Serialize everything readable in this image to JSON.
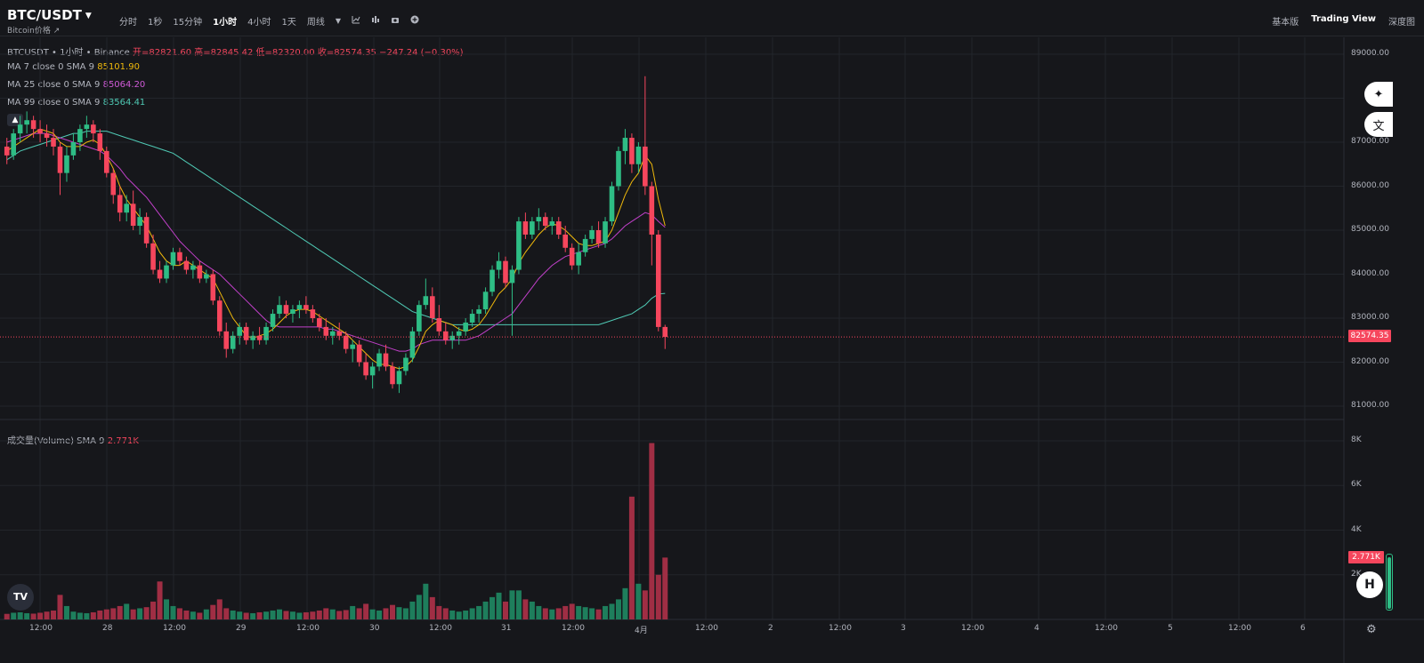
{
  "header": {
    "pair": "BTC/USDT",
    "subtitle": "Bitcoin价格 ↗",
    "intervals": [
      "分时",
      "1秒",
      "15分钟",
      "1小时",
      "4小时",
      "1天",
      "周线"
    ],
    "active_interval": "1小时",
    "views": [
      "基本版",
      "Trading View",
      "深度图"
    ],
    "active_view": "Trading View"
  },
  "legend": {
    "ohlc_prefix": "BTCUSDT • 1小时 • Binance",
    "ohlc_values": "开=82821.60  高=82845.42  低=82320.00  收=82574.35  −247.24 (−0.30%)",
    "ma7_label": "MA 7 close 0 SMA 9",
    "ma7_value": "85101.90",
    "ma25_label": "MA 25 close 0 SMA 9",
    "ma25_value": "85064.20",
    "ma99_label": "MA 99 close 0 SMA 9",
    "ma99_value": "83564.41",
    "volume_label": "成交量(Volume) SMA 9",
    "volume_value": "2.771K"
  },
  "price_axis": {
    "ticks": [
      "89000.00",
      "87000.00",
      "86000.00",
      "85000.00",
      "84000.00",
      "83000.00",
      "82000.00",
      "81000.00"
    ],
    "current_price": "82574.35",
    "current_price_color": "#f6465d"
  },
  "volume_axis": {
    "ticks": [
      "8K",
      "6K",
      "4K",
      "2K"
    ],
    "current_volume": "2.771K"
  },
  "time_axis": {
    "ticks": [
      "12:00",
      "28",
      "12:00",
      "29",
      "12:00",
      "30",
      "12:00",
      "31",
      "12:00",
      "4月",
      "12:00",
      "2",
      "12:00",
      "3",
      "12:00",
      "4",
      "12:00",
      "5",
      "12:00",
      "6"
    ]
  },
  "colors": {
    "up": "#2ebd85",
    "down": "#f6465d",
    "ma7": "#f0b90b",
    "ma25": "#c140c9",
    "ma99": "#4fc9b4",
    "background": "#16171b"
  },
  "icons": [
    "chart-type-icon",
    "indicators-icon",
    "camera-icon",
    "add-icon",
    "sparkle-icon",
    "translate-icon",
    "settings-icon"
  ],
  "chart_data": {
    "type": "candlestick",
    "series_notes": "Approximate hourly OHLC reconstructed from image",
    "price_range": [
      81000,
      89000
    ],
    "volume_range": [
      0,
      8000
    ],
    "candles": [
      [
        86900,
        87100,
        86500,
        86700
      ],
      [
        86700,
        87300,
        86600,
        87200
      ],
      [
        87200,
        87600,
        87000,
        87400
      ],
      [
        87400,
        87700,
        87200,
        87500
      ],
      [
        87500,
        87600,
        87100,
        87300
      ],
      [
        87300,
        87500,
        87000,
        87200
      ],
      [
        87200,
        87400,
        86900,
        87100
      ],
      [
        87100,
        87300,
        86700,
        86900
      ],
      [
        86900,
        87000,
        85800,
        86300
      ],
      [
        86300,
        86900,
        86100,
        86700
      ],
      [
        86700,
        87200,
        86600,
        87000
      ],
      [
        87000,
        87400,
        86800,
        87300
      ],
      [
        87300,
        87600,
        87100,
        87400
      ],
      [
        87400,
        87500,
        87000,
        87200
      ],
      [
        87200,
        87300,
        86600,
        86800
      ],
      [
        86800,
        86900,
        86200,
        86300
      ],
      [
        86300,
        86400,
        85600,
        85800
      ],
      [
        85800,
        86000,
        85200,
        85400
      ],
      [
        85400,
        85800,
        85200,
        85600
      ],
      [
        85600,
        85900,
        85000,
        85100
      ],
      [
        85100,
        85500,
        84900,
        85300
      ],
      [
        85300,
        85400,
        84600,
        84700
      ],
      [
        84700,
        84900,
        84000,
        84100
      ],
      [
        84100,
        84300,
        83800,
        83900
      ],
      [
        83900,
        84300,
        83800,
        84200
      ],
      [
        84200,
        84600,
        84100,
        84500
      ],
      [
        84500,
        84600,
        84200,
        84300
      ],
      [
        84300,
        84400,
        84000,
        84100
      ],
      [
        84100,
        84300,
        83900,
        84200
      ],
      [
        84200,
        84300,
        83800,
        83900
      ],
      [
        83900,
        84100,
        83800,
        84000
      ],
      [
        84000,
        84100,
        83300,
        83400
      ],
      [
        83400,
        83500,
        82600,
        82700
      ],
      [
        82700,
        82900,
        82100,
        82300
      ],
      [
        82300,
        82700,
        82200,
        82600
      ],
      [
        82600,
        82900,
        82400,
        82800
      ],
      [
        82800,
        82900,
        82400,
        82500
      ],
      [
        82500,
        82700,
        82300,
        82600
      ],
      [
        82600,
        82800,
        82400,
        82500
      ],
      [
        82500,
        82900,
        82400,
        82800
      ],
      [
        82800,
        83200,
        82700,
        83100
      ],
      [
        83100,
        83500,
        83000,
        83300
      ],
      [
        83300,
        83400,
        83000,
        83100
      ],
      [
        83100,
        83300,
        82900,
        83200
      ],
      [
        83200,
        83400,
        83000,
        83300
      ],
      [
        83300,
        83500,
        83100,
        83200
      ],
      [
        83200,
        83300,
        82900,
        83000
      ],
      [
        83000,
        83100,
        82700,
        82800
      ],
      [
        82800,
        83000,
        82500,
        82600
      ],
      [
        82600,
        82800,
        82400,
        82700
      ],
      [
        82700,
        82900,
        82500,
        82600
      ],
      [
        82600,
        82700,
        82200,
        82300
      ],
      [
        82300,
        82500,
        82000,
        82400
      ],
      [
        82400,
        82500,
        81900,
        82000
      ],
      [
        82000,
        82200,
        81600,
        81700
      ],
      [
        81700,
        82000,
        81400,
        81900
      ],
      [
        81900,
        82300,
        81800,
        82200
      ],
      [
        82200,
        82400,
        81800,
        81900
      ],
      [
        81900,
        82000,
        81400,
        81500
      ],
      [
        81500,
        81900,
        81300,
        81800
      ],
      [
        81800,
        82200,
        81700,
        82100
      ],
      [
        82100,
        82800,
        82000,
        82700
      ],
      [
        82700,
        83400,
        82600,
        83300
      ],
      [
        83300,
        83900,
        83200,
        83500
      ],
      [
        83500,
        83700,
        82900,
        83000
      ],
      [
        83000,
        83300,
        82600,
        82700
      ],
      [
        82700,
        82900,
        82400,
        82500
      ],
      [
        82500,
        82700,
        82300,
        82600
      ],
      [
        82600,
        82800,
        82400,
        82700
      ],
      [
        82700,
        83000,
        82600,
        82900
      ],
      [
        82900,
        83200,
        82800,
        83100
      ],
      [
        83100,
        83300,
        82900,
        83200
      ],
      [
        83200,
        83700,
        83100,
        83600
      ],
      [
        83600,
        84200,
        83500,
        84100
      ],
      [
        84100,
        84500,
        83900,
        84300
      ],
      [
        84300,
        84400,
        83700,
        83800
      ],
      [
        83800,
        84200,
        82600,
        84100
      ],
      [
        84100,
        85300,
        84000,
        85200
      ],
      [
        85200,
        85400,
        84800,
        84900
      ],
      [
        84900,
        85300,
        84800,
        85200
      ],
      [
        85200,
        85500,
        85000,
        85300
      ],
      [
        85300,
        85400,
        85000,
        85100
      ],
      [
        85100,
        85300,
        84900,
        85200
      ],
      [
        85200,
        85300,
        84800,
        84900
      ],
      [
        84900,
        85100,
        84500,
        84600
      ],
      [
        84600,
        84700,
        84100,
        84200
      ],
      [
        84200,
        84700,
        84000,
        84500
      ],
      [
        84500,
        84900,
        84400,
        84800
      ],
      [
        84800,
        85100,
        84700,
        85000
      ],
      [
        85000,
        85200,
        84600,
        84700
      ],
      [
        84700,
        85300,
        84600,
        85200
      ],
      [
        85200,
        86100,
        85100,
        86000
      ],
      [
        86000,
        86900,
        85900,
        86800
      ],
      [
        86800,
        87300,
        86500,
        87100
      ],
      [
        87100,
        87200,
        86300,
        86500
      ],
      [
        86500,
        87000,
        86300,
        86900
      ],
      [
        86900,
        88500,
        85800,
        86000
      ],
      [
        86000,
        86100,
        84200,
        84900
      ],
      [
        84900,
        85000,
        82700,
        82800
      ],
      [
        82800,
        82850,
        82300,
        82574
      ]
    ],
    "volumes": [
      250,
      300,
      320,
      280,
      260,
      300,
      350,
      400,
      1100,
      600,
      350,
      300,
      280,
      320,
      400,
      450,
      500,
      600,
      700,
      450,
      500,
      550,
      800,
      1700,
      900,
      600,
      500,
      400,
      350,
      300,
      450,
      650,
      900,
      500,
      400,
      350,
      300,
      280,
      320,
      350,
      400,
      450,
      380,
      350,
      300,
      320,
      350,
      400,
      500,
      450,
      380,
      420,
      600,
      500,
      700,
      450,
      400,
      500,
      650,
      550,
      500,
      800,
      1100,
      1600,
      1000,
      600,
      500,
      400,
      350,
      400,
      500,
      600,
      800,
      1000,
      1200,
      800,
      1300,
      1300,
      900,
      800,
      600,
      500,
      450,
      500,
      600,
      700,
      600,
      550,
      500,
      450,
      600,
      700,
      900,
      1400,
      5500,
      1600,
      1300,
      7900,
      2000,
      2771
    ],
    "ma7": [
      86800,
      86900,
      87000,
      87100,
      87200,
      87300,
      87250,
      87200,
      87000,
      86900,
      86900,
      86900,
      87000,
      87050,
      86950,
      86700,
      86400,
      86000,
      85700,
      85500,
      85300,
      85100,
      84800,
      84500,
      84300,
      84200,
      84200,
      84300,
      84200,
      84100,
      84000,
      83900,
      83600,
      83300,
      83000,
      82800,
      82600,
      82550,
      82600,
      82650,
      82750,
      82900,
      83050,
      83150,
      83200,
      83200,
      83150,
      83050,
      82950,
      82850,
      82750,
      82650,
      82500,
      82350,
      82200,
      82050,
      81950,
      81950,
      81900,
      81850,
      81900,
      82050,
      82350,
      82700,
      82850,
      82950,
      82900,
      82850,
      82750,
      82700,
      82750,
      82850,
      83050,
      83300,
      83550,
      83700,
      83900,
      84250,
      84500,
      84700,
      84900,
      85050,
      85150,
      85100,
      85000,
      84850,
      84700,
      84650,
      84650,
      84700,
      84750,
      85000,
      85400,
      85800,
      86100,
      86300,
      86700,
      86500,
      85700,
      85101
    ],
    "ma25": [
      87000,
      87050,
      87100,
      87150,
      87200,
      87200,
      87200,
      87150,
      87100,
      87050,
      87000,
      86950,
      86900,
      86850,
      86800,
      86700,
      86550,
      86400,
      86200,
      86050,
      85900,
      85750,
      85550,
      85350,
      85150,
      84950,
      84750,
      84600,
      84450,
      84300,
      84200,
      84100,
      84000,
      83850,
      83700,
      83550,
      83400,
      83250,
      83100,
      82950,
      82850,
      82800,
      82800,
      82800,
      82800,
      82800,
      82800,
      82800,
      82750,
      82750,
      82700,
      82650,
      82600,
      82550,
      82500,
      82450,
      82400,
      82350,
      82300,
      82250,
      82250,
      82300,
      82400,
      82450,
      82500,
      82500,
      82500,
      82500,
      82500,
      82500,
      82550,
      82600,
      82700,
      82800,
      82900,
      83000,
      83100,
      83300,
      83500,
      83700,
      83900,
      84050,
      84200,
      84300,
      84400,
      84450,
      84500,
      84550,
      84600,
      84650,
      84700,
      84800,
      84950,
      85100,
      85200,
      85300,
      85400,
      85350,
      85200,
      85064
    ],
    "ma99": [
      86600,
      86700,
      86800,
      86850,
      86900,
      86950,
      87000,
      87050,
      87100,
      87150,
      87200,
      87200,
      87250,
      87250,
      87250,
      87250,
      87200,
      87150,
      87100,
      87050,
      87000,
      86950,
      86900,
      86850,
      86800,
      86750,
      86650,
      86550,
      86450,
      86350,
      86250,
      86150,
      86050,
      85950,
      85850,
      85750,
      85650,
      85550,
      85450,
      85350,
      85250,
      85150,
      85050,
      84950,
      84850,
      84750,
      84650,
      84550,
      84450,
      84350,
      84250,
      84150,
      84050,
      83950,
      83850,
      83750,
      83650,
      83550,
      83450,
      83350,
      83250,
      83150,
      83100,
      83050,
      83000,
      82950,
      82900,
      82850,
      82850,
      82850,
      82850,
      82850,
      82850,
      82850,
      82850,
      82850,
      82850,
      82850,
      82850,
      82850,
      82850,
      82850,
      82850,
      82850,
      82850,
      82850,
      82850,
      82850,
      82850,
      82850,
      82900,
      82950,
      83000,
      83050,
      83100,
      83200,
      83300,
      83450,
      83550,
      83564
    ]
  }
}
